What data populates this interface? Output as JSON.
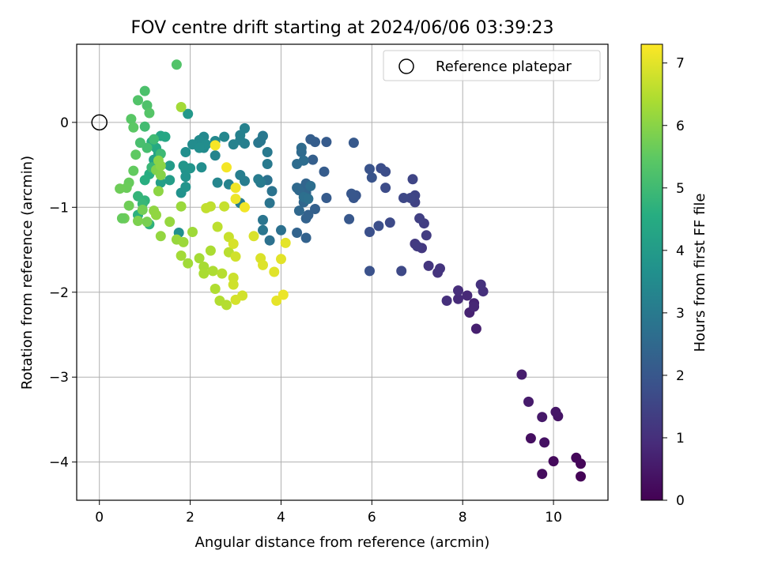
{
  "chart_data": {
    "type": "scatter",
    "title": "FOV centre drift starting at 2024/06/06 03:39:23",
    "xlabel": "Angular distance from reference (arcmin)",
    "ylabel": "Rotation from reference (arcmin)",
    "xlim": [
      -0.5,
      11.2
    ],
    "ylim": [
      -4.45,
      0.92
    ],
    "x_ticks": [
      0,
      2,
      4,
      6,
      8,
      10
    ],
    "y_ticks": [
      0,
      -1,
      -2,
      -3,
      -4
    ],
    "grid": true,
    "legend": {
      "position": "top-right",
      "label": "Reference platepar"
    },
    "reference_point": {
      "x": 0,
      "y": 0
    },
    "colorbar": {
      "label": "Hours from first FF file",
      "range": [
        0,
        7.3
      ],
      "ticks": [
        0,
        1,
        2,
        3,
        4,
        5,
        6,
        7
      ],
      "colormap": "viridis"
    },
    "series": [
      {
        "values_format": "[x, y, hours]",
        "points": [
          [
            10.6,
            -4.17,
            0.05
          ],
          [
            10.6,
            -4.02,
            0.1
          ],
          [
            10.5,
            -3.95,
            0.15
          ],
          [
            10.0,
            -3.99,
            0.2
          ],
          [
            9.75,
            -4.14,
            0.25
          ],
          [
            9.5,
            -3.72,
            0.3
          ],
          [
            9.8,
            -3.77,
            0.35
          ],
          [
            10.1,
            -3.46,
            0.4
          ],
          [
            10.05,
            -3.41,
            0.45
          ],
          [
            9.75,
            -3.47,
            0.5
          ],
          [
            9.45,
            -3.29,
            0.55
          ],
          [
            9.3,
            -2.97,
            0.6
          ],
          [
            8.3,
            -2.43,
            0.65
          ],
          [
            8.15,
            -2.24,
            0.7
          ],
          [
            8.25,
            -2.13,
            0.75
          ],
          [
            8.25,
            -2.17,
            0.8
          ],
          [
            8.1,
            -2.04,
            0.85
          ],
          [
            7.9,
            -2.08,
            0.9
          ],
          [
            7.9,
            -1.98,
            0.95
          ],
          [
            7.65,
            -2.1,
            1.0
          ],
          [
            8.45,
            -1.99,
            1.02
          ],
          [
            8.4,
            -1.91,
            1.05
          ],
          [
            7.45,
            -1.77,
            1.1
          ],
          [
            7.5,
            -1.72,
            1.12
          ],
          [
            7.25,
            -1.69,
            1.15
          ],
          [
            7.1,
            -1.48,
            1.2
          ],
          [
            6.95,
            -1.43,
            1.25
          ],
          [
            7.0,
            -1.46,
            1.28
          ],
          [
            7.2,
            -1.33,
            1.3
          ],
          [
            7.15,
            -1.19,
            1.35
          ],
          [
            7.05,
            -1.13,
            1.4
          ],
          [
            6.95,
            -0.94,
            1.45
          ],
          [
            6.95,
            -0.86,
            1.5
          ],
          [
            6.9,
            -0.67,
            1.52
          ],
          [
            6.85,
            -0.89,
            1.55
          ],
          [
            6.7,
            -0.89,
            1.6
          ],
          [
            6.65,
            -1.75,
            1.62
          ],
          [
            6.4,
            -1.18,
            1.65
          ],
          [
            6.3,
            -0.77,
            1.7
          ],
          [
            6.3,
            -0.58,
            1.72
          ],
          [
            6.2,
            -0.54,
            1.75
          ],
          [
            6.15,
            -1.22,
            1.78
          ],
          [
            5.95,
            -1.29,
            1.8
          ],
          [
            5.95,
            -1.75,
            1.85
          ],
          [
            5.95,
            -0.55,
            1.9
          ],
          [
            6.0,
            -0.65,
            1.92
          ],
          [
            5.65,
            -0.86,
            1.95
          ],
          [
            5.6,
            -0.89,
            1.98
          ],
          [
            5.55,
            -0.84,
            2.0
          ],
          [
            5.5,
            -1.14,
            2.02
          ],
          [
            5.6,
            -0.24,
            2.05
          ],
          [
            5.0,
            -0.23,
            2.1
          ],
          [
            5.0,
            -0.89,
            2.12
          ],
          [
            4.95,
            -0.58,
            2.15
          ],
          [
            4.75,
            -0.23,
            2.18
          ],
          [
            4.65,
            -0.2,
            2.2
          ],
          [
            4.7,
            -0.44,
            2.22
          ],
          [
            4.75,
            -1.02,
            2.25
          ],
          [
            4.6,
            -1.09,
            2.28
          ],
          [
            4.55,
            -1.13,
            2.3
          ],
          [
            4.55,
            -1.36,
            2.32
          ],
          [
            4.35,
            -1.3,
            2.35
          ],
          [
            4.5,
            -0.77,
            2.38
          ],
          [
            4.55,
            -0.72,
            2.4
          ],
          [
            4.55,
            -0.83,
            2.42
          ],
          [
            4.5,
            -0.94,
            2.45
          ],
          [
            4.4,
            -1.04,
            2.48
          ],
          [
            4.4,
            -0.8,
            2.5
          ],
          [
            4.35,
            -0.77,
            2.52
          ],
          [
            4.45,
            -0.35,
            2.55
          ],
          [
            4.45,
            -0.3,
            2.58
          ],
          [
            4.35,
            -0.49,
            2.6
          ],
          [
            4.5,
            -0.45,
            2.62
          ],
          [
            4.65,
            -0.75,
            2.65
          ],
          [
            4.5,
            -0.88,
            2.68
          ],
          [
            4.6,
            -0.9,
            2.7
          ],
          [
            4.0,
            -1.27,
            2.72
          ],
          [
            3.75,
            -1.39,
            2.75
          ],
          [
            3.7,
            -0.68,
            2.78
          ],
          [
            3.8,
            -0.81,
            2.8
          ],
          [
            3.75,
            -0.95,
            2.82
          ],
          [
            3.6,
            -1.15,
            2.85
          ],
          [
            3.6,
            -1.27,
            2.88
          ],
          [
            3.55,
            -0.22,
            2.9
          ],
          [
            3.5,
            -0.24,
            2.92
          ],
          [
            3.6,
            -0.16,
            2.95
          ],
          [
            3.7,
            -0.35,
            2.98
          ],
          [
            3.7,
            -0.49,
            3.0
          ],
          [
            3.55,
            -0.71,
            3.02
          ],
          [
            3.5,
            -0.67,
            3.05
          ],
          [
            3.1,
            -0.95,
            3.08
          ],
          [
            3.2,
            -0.69,
            3.1
          ],
          [
            3.1,
            -0.62,
            3.12
          ],
          [
            3.2,
            -0.25,
            3.15
          ],
          [
            3.1,
            -0.21,
            3.18
          ],
          [
            3.2,
            -0.07,
            3.2
          ],
          [
            3.1,
            -0.15,
            3.22
          ],
          [
            2.95,
            -0.26,
            3.25
          ],
          [
            2.85,
            -0.73,
            3.28
          ],
          [
            2.55,
            -0.39,
            3.3
          ],
          [
            2.6,
            -0.71,
            3.35
          ],
          [
            2.75,
            -0.17,
            3.38
          ],
          [
            2.55,
            -0.22,
            3.4
          ],
          [
            2.3,
            -0.17,
            3.42
          ],
          [
            2.2,
            -0.26,
            3.45
          ],
          [
            2.3,
            -0.3,
            3.48
          ],
          [
            2.2,
            -0.21,
            3.5
          ],
          [
            2.05,
            -0.26,
            3.52
          ],
          [
            2.35,
            -0.26,
            3.55
          ],
          [
            2.25,
            -0.53,
            3.58
          ],
          [
            2.2,
            -0.3,
            3.6
          ],
          [
            1.9,
            -0.35,
            3.62
          ],
          [
            1.75,
            -1.3,
            3.65
          ],
          [
            1.8,
            -0.83,
            3.7
          ],
          [
            1.9,
            -0.56,
            3.72
          ],
          [
            1.9,
            -0.64,
            3.75
          ],
          [
            1.9,
            -0.76,
            3.78
          ],
          [
            2.0,
            -0.54,
            3.8
          ],
          [
            1.85,
            -0.51,
            3.85
          ],
          [
            1.95,
            0.1,
            3.9
          ],
          [
            1.55,
            -0.51,
            4.0
          ],
          [
            1.55,
            -0.68,
            4.05
          ],
          [
            1.35,
            -0.71,
            4.1
          ],
          [
            1.25,
            -0.54,
            4.15
          ],
          [
            1.2,
            -0.44,
            4.2
          ],
          [
            1.3,
            -0.37,
            4.25
          ],
          [
            1.35,
            -0.16,
            4.3
          ],
          [
            1.45,
            -0.17,
            4.35
          ],
          [
            1.25,
            -0.3,
            4.4
          ],
          [
            1.15,
            -0.27,
            4.45
          ],
          [
            1.15,
            -0.23,
            4.5
          ],
          [
            1.1,
            -0.61,
            4.55
          ],
          [
            1.0,
            -0.68,
            4.6
          ],
          [
            0.85,
            -1.09,
            4.65
          ],
          [
            1.1,
            -1.2,
            4.7
          ],
          [
            1.0,
            -0.92,
            4.75
          ],
          [
            0.85,
            -0.87,
            4.8
          ],
          [
            0.95,
            -0.96,
            4.85
          ],
          [
            1.15,
            -0.53,
            4.9
          ],
          [
            1.35,
            -0.37,
            4.95
          ],
          [
            1.2,
            -0.2,
            5.0
          ],
          [
            1.0,
            -0.05,
            5.05
          ],
          [
            1.05,
            -0.3,
            5.1
          ],
          [
            0.9,
            -0.24,
            5.15
          ],
          [
            1.0,
            0.37,
            5.2
          ],
          [
            1.05,
            0.2,
            5.25
          ],
          [
            0.85,
            0.26,
            5.3
          ],
          [
            1.1,
            0.11,
            5.35
          ],
          [
            0.7,
            0.04,
            5.4
          ],
          [
            0.75,
            -0.06,
            5.45
          ],
          [
            0.8,
            -0.38,
            5.5
          ],
          [
            0.75,
            -0.57,
            5.55
          ],
          [
            0.65,
            -0.71,
            5.6
          ],
          [
            0.6,
            -0.77,
            5.65
          ],
          [
            0.45,
            -0.78,
            5.68
          ],
          [
            0.65,
            -0.98,
            5.7
          ],
          [
            0.55,
            -1.13,
            5.72
          ],
          [
            0.95,
            -1.03,
            5.75
          ],
          [
            1.05,
            -1.17,
            5.8
          ],
          [
            0.85,
            -1.16,
            5.85
          ],
          [
            1.25,
            -0.56,
            5.9
          ],
          [
            1.35,
            -0.62,
            5.95
          ],
          [
            1.3,
            -0.45,
            6.0
          ],
          [
            1.35,
            -0.51,
            6.02
          ],
          [
            1.3,
            -0.81,
            6.05
          ],
          [
            1.2,
            -1.04,
            6.08
          ],
          [
            1.25,
            -1.09,
            6.1
          ],
          [
            1.35,
            -1.34,
            6.12
          ],
          [
            1.55,
            -1.17,
            6.15
          ],
          [
            1.7,
            -1.38,
            6.18
          ],
          [
            1.8,
            -0.99,
            6.2
          ],
          [
            1.85,
            -1.41,
            6.22
          ],
          [
            2.05,
            -1.29,
            6.25
          ],
          [
            1.95,
            -1.66,
            6.28
          ],
          [
            1.8,
            -1.57,
            6.3
          ],
          [
            2.2,
            -1.6,
            6.32
          ],
          [
            2.3,
            -1.7,
            6.35
          ],
          [
            2.3,
            -1.78,
            6.38
          ],
          [
            2.45,
            -1.51,
            6.4
          ],
          [
            2.5,
            -1.75,
            6.42
          ],
          [
            2.55,
            -1.96,
            6.45
          ],
          [
            2.65,
            -2.1,
            6.48
          ],
          [
            2.8,
            -2.15,
            6.5
          ],
          [
            2.7,
            -1.78,
            6.52
          ],
          [
            2.85,
            -1.53,
            6.55
          ],
          [
            2.6,
            -1.23,
            6.6
          ],
          [
            2.45,
            -0.99,
            6.62
          ],
          [
            2.35,
            -1.01,
            6.65
          ],
          [
            2.75,
            -0.99,
            6.7
          ],
          [
            2.85,
            -1.35,
            6.72
          ],
          [
            2.95,
            -1.83,
            6.75
          ],
          [
            2.95,
            -1.91,
            6.78
          ],
          [
            3.0,
            -1.58,
            6.8
          ],
          [
            3.15,
            -2.04,
            6.82
          ],
          [
            3.0,
            -2.09,
            6.85
          ],
          [
            2.95,
            -1.43,
            6.88
          ],
          [
            3.4,
            -1.34,
            6.9
          ],
          [
            3.55,
            -1.6,
            6.92
          ],
          [
            3.6,
            -1.68,
            6.95
          ],
          [
            3.85,
            -1.76,
            6.98
          ],
          [
            4.0,
            -1.61,
            7.0
          ],
          [
            4.1,
            -1.42,
            7.02
          ],
          [
            3.9,
            -2.1,
            7.05
          ],
          [
            4.05,
            -2.03,
            7.1
          ],
          [
            3.0,
            -0.9,
            7.12
          ],
          [
            3.0,
            -0.77,
            7.15
          ],
          [
            3.2,
            -1.0,
            7.18
          ],
          [
            2.8,
            -0.53,
            7.2
          ],
          [
            2.55,
            -0.27,
            7.22
          ],
          [
            1.7,
            0.68,
            5.3
          ],
          [
            1.8,
            0.18,
            6.3
          ],
          [
            0.5,
            -1.13,
            5.6
          ]
        ]
      }
    ]
  }
}
